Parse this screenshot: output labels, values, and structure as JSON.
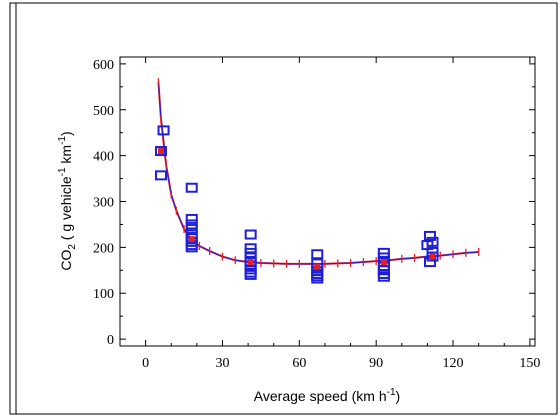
{
  "chart_data": {
    "type": "scatter",
    "xlabel": "Average speed (km h",
    "xlabel_sup": "-1",
    "xlabel_end": ")",
    "ylabel": "CO",
    "ylabel_sub": "2",
    "ylabel_mid": " ( g vehicle",
    "ylabel_sup1": "-1",
    "ylabel_mid2": " km",
    "ylabel_sup2": "-1",
    "ylabel_end": ")",
    "xlim": [
      -10,
      152
    ],
    "ylim": [
      -15,
      615
    ],
    "x_ticks": [
      0,
      30,
      60,
      90,
      120,
      150
    ],
    "y_ticks": [
      0,
      100,
      200,
      300,
      400,
      500,
      600
    ],
    "grid": false,
    "series": [
      {
        "kind": "measured",
        "marker": "square",
        "color": "#1f1fd6",
        "points": [
          [
            7,
            455
          ],
          [
            6,
            410
          ],
          [
            6,
            357
          ],
          [
            18,
            330
          ],
          [
            18,
            262
          ],
          [
            18,
            250
          ],
          [
            18,
            240
          ],
          [
            18,
            228
          ],
          [
            18,
            220
          ],
          [
            18,
            212
          ],
          [
            18,
            205
          ],
          [
            18,
            200
          ],
          [
            41,
            228
          ],
          [
            41,
            198
          ],
          [
            41,
            188
          ],
          [
            41,
            178
          ],
          [
            41,
            168
          ],
          [
            41,
            160
          ],
          [
            41,
            152
          ],
          [
            41,
            145
          ],
          [
            41,
            140
          ],
          [
            67,
            185
          ],
          [
            67,
            165
          ],
          [
            67,
            155
          ],
          [
            67,
            148
          ],
          [
            67,
            142
          ],
          [
            67,
            137
          ],
          [
            67,
            132
          ],
          [
            93,
            188
          ],
          [
            93,
            178
          ],
          [
            93,
            168
          ],
          [
            93,
            158
          ],
          [
            93,
            150
          ],
          [
            93,
            142
          ],
          [
            93,
            136
          ],
          [
            111,
            225
          ],
          [
            112,
            212
          ],
          [
            110,
            205
          ],
          [
            112,
            190
          ],
          [
            112,
            180
          ],
          [
            111,
            168
          ]
        ]
      },
      {
        "kind": "fitted",
        "line_color": "#1f1fd6",
        "marker": "vtick",
        "color": "#e0202a",
        "x": [
          5,
          6,
          8,
          10,
          12,
          15,
          18,
          21,
          25,
          30,
          35,
          40,
          45,
          50,
          55,
          60,
          65,
          70,
          75,
          80,
          85,
          90,
          95,
          100,
          105,
          110,
          115,
          120,
          125,
          130
        ],
        "y": [
          560,
          480,
          380,
          315,
          280,
          240,
          215,
          203,
          192,
          180,
          172,
          168,
          166,
          165,
          164,
          164,
          164,
          164,
          165,
          166,
          168,
          170,
          172,
          175,
          177,
          180,
          182,
          185,
          188,
          190
        ]
      },
      {
        "kind": "mean",
        "marker": "filled-square",
        "color": "#e0202a",
        "points": [
          [
            6,
            410
          ],
          [
            18,
            218
          ],
          [
            41,
            168
          ],
          [
            67,
            158
          ],
          [
            93,
            168
          ],
          [
            112,
            180
          ]
        ]
      }
    ]
  }
}
